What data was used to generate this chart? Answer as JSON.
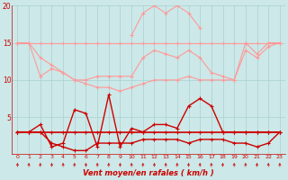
{
  "x": [
    0,
    1,
    2,
    3,
    4,
    5,
    6,
    7,
    8,
    9,
    10,
    11,
    12,
    13,
    14,
    15,
    16,
    17,
    18,
    19,
    20,
    21,
    22,
    23
  ],
  "line_flat15": [
    15,
    15,
    15,
    15,
    15,
    15,
    15,
    15,
    15,
    15,
    15,
    15,
    15,
    15,
    15,
    15,
    15,
    15,
    15,
    15,
    15,
    15,
    15,
    15
  ],
  "line_peak": [
    null,
    null,
    null,
    null,
    null,
    null,
    null,
    null,
    null,
    null,
    16,
    19,
    20,
    19,
    20,
    19,
    17,
    null,
    null,
    null,
    null,
    null,
    null,
    null
  ],
  "line_upper": [
    15,
    15,
    10.5,
    11.5,
    11,
    10,
    10,
    10.5,
    10.5,
    10.5,
    10.5,
    13,
    14,
    13.5,
    13,
    14,
    13,
    11,
    10.5,
    10,
    15,
    13.5,
    15,
    15
  ],
  "line_lower_band": [
    15,
    15,
    13,
    12,
    11,
    10,
    9.5,
    9,
    9,
    8.5,
    9,
    9.5,
    10,
    10,
    10,
    10.5,
    10,
    10,
    10,
    10,
    14,
    13,
    14.5,
    15
  ],
  "line_red_spike": [
    3,
    3,
    4,
    1,
    1.5,
    6,
    5.5,
    1,
    8,
    1,
    3.5,
    3,
    4,
    4,
    3.5,
    6.5,
    7.5,
    6.5,
    3,
    3,
    3,
    3,
    3,
    3
  ],
  "line_red_low": [
    3,
    3,
    3,
    1.5,
    1,
    0.5,
    0.5,
    1.5,
    1.5,
    1.5,
    1.5,
    2,
    2,
    2,
    2,
    1.5,
    2,
    2,
    2,
    1.5,
    1.5,
    1,
    1.5,
    3
  ],
  "line_red_flat": [
    3,
    3,
    3,
    3,
    3,
    3,
    3,
    3,
    3,
    3,
    3,
    3,
    3,
    3,
    3,
    3,
    3,
    3,
    3,
    3,
    3,
    3,
    3,
    3
  ],
  "bg_color": "#cce8e8",
  "grid_color": "#aad0d0",
  "light_pink": "#ff9999",
  "dark_red": "#cc0000",
  "xlabel": "Vent moyen/en rafales ( km/h )",
  "ylim_min": 0,
  "ylim_max": 20,
  "ytick_labels": [
    "",
    "5",
    "10",
    "15",
    "20"
  ],
  "ytick_vals": [
    0,
    5,
    10,
    15,
    20
  ]
}
